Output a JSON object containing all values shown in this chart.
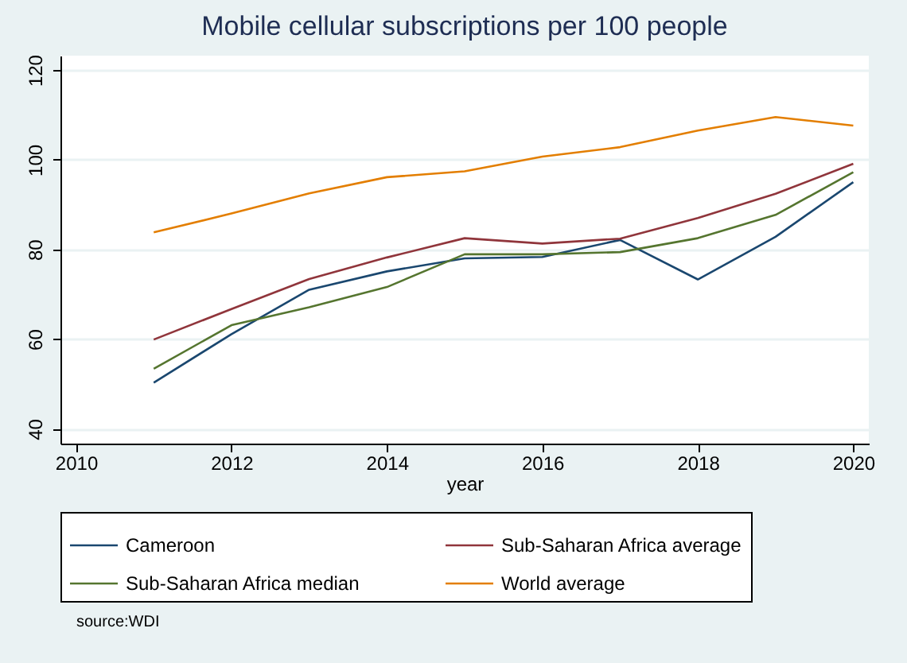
{
  "chart_data": {
    "type": "line",
    "title": "Mobile cellular subscriptions per 100 people",
    "xlabel": "year",
    "x": [
      2011,
      2012,
      2013,
      2014,
      2015,
      2016,
      2017,
      2018,
      2019,
      2020
    ],
    "series": [
      {
        "name": "Cameroon",
        "color": "#1a476f",
        "values": [
          50.3,
          61.1,
          71.0,
          75.1,
          78.0,
          78.3,
          82.1,
          73.3,
          82.8,
          95.0
        ]
      },
      {
        "name": "Sub-Saharan Africa average",
        "color": "#90353b",
        "values": [
          59.9,
          66.7,
          73.4,
          78.2,
          82.5,
          81.3,
          82.4,
          87.0,
          92.4,
          99.1
        ]
      },
      {
        "name": "Sub-Saharan Africa median",
        "color": "#55752f",
        "values": [
          53.4,
          63.1,
          67.1,
          71.6,
          78.9,
          78.9,
          79.4,
          82.5,
          87.7,
          97.2
        ]
      },
      {
        "name": "World average",
        "color": "#e37e00",
        "values": [
          83.8,
          88.0,
          92.5,
          96.1,
          97.4,
          100.7,
          102.8,
          106.5,
          109.5,
          107.6
        ]
      }
    ],
    "xlim": [
      2009.8,
      2020.2
    ],
    "xticks": [
      2010,
      2012,
      2014,
      2016,
      2018,
      2020
    ],
    "ylim": [
      36.7,
      123.2
    ],
    "yticks": [
      40,
      60,
      80,
      100,
      120
    ],
    "grid": "y",
    "legend": "bottom",
    "marker": "none",
    "line_style": "solid",
    "annotations": [
      "source:WDI"
    ]
  }
}
